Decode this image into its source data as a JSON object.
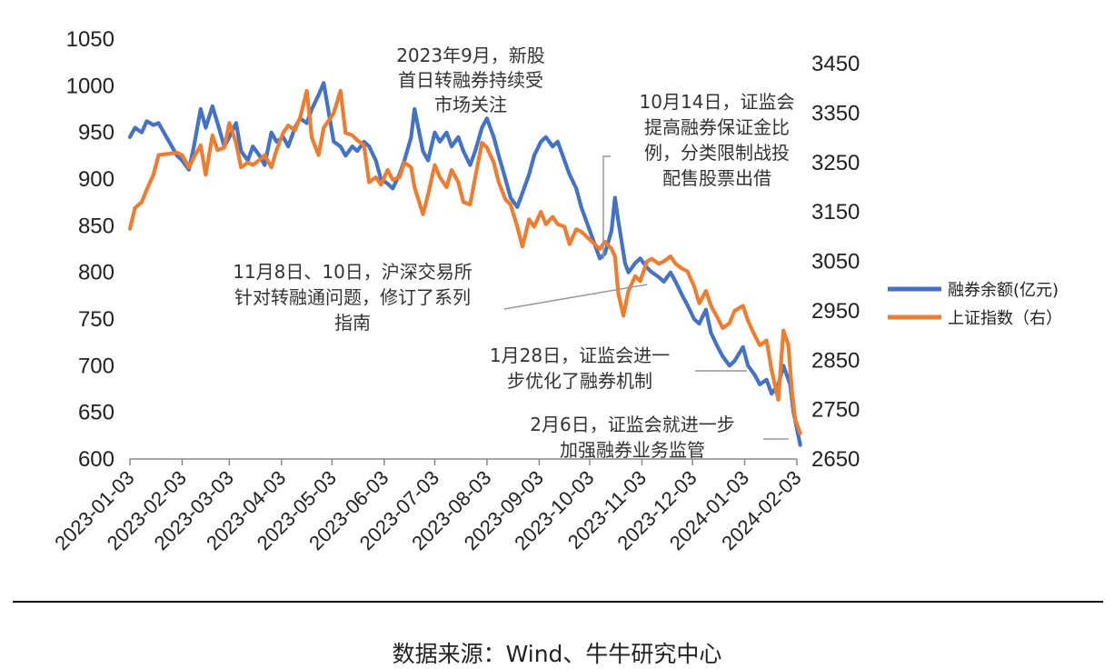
{
  "chart_data": {
    "type": "line",
    "title": "",
    "left_axis": {
      "min": 600,
      "max": 1050,
      "ticks": [
        "1050",
        "1000",
        "950",
        "900",
        "850",
        "800",
        "750",
        "700",
        "650",
        "600"
      ]
    },
    "right_axis": {
      "min": 2650,
      "max": 3450,
      "ticks": [
        "3450",
        "3350",
        "3250",
        "3150",
        "3050",
        "2950",
        "2850",
        "2750",
        "2650"
      ]
    },
    "x_ticks": [
      "2023-01-03",
      "2023-02-03",
      "2023-03-03",
      "2023-04-03",
      "2023-05-03",
      "2023-06-03",
      "2023-07-03",
      "2023-08-03",
      "2023-09-03",
      "2023-10-03",
      "2023-11-03",
      "2023-12-03",
      "2024-01-03",
      "2024-02-03"
    ],
    "grid": false,
    "legend": "right",
    "series": [
      {
        "name": "融券余额(亿元)",
        "axis": "left",
        "color": "#4472C4",
        "points": [
          [
            "2023-01-03",
            945
          ],
          [
            "2023-01-06",
            955
          ],
          [
            "2023-01-10",
            950
          ],
          [
            "2023-01-13",
            962
          ],
          [
            "2023-01-17",
            958
          ],
          [
            "2023-01-20",
            960
          ],
          [
            "2023-01-31",
            925
          ],
          [
            "2023-02-03",
            920
          ],
          [
            "2023-02-07",
            910
          ],
          [
            "2023-02-10",
            935
          ],
          [
            "2023-02-14",
            975
          ],
          [
            "2023-02-17",
            955
          ],
          [
            "2023-02-21",
            978
          ],
          [
            "2023-02-24",
            960
          ],
          [
            "2023-02-28",
            935
          ],
          [
            "2023-03-03",
            945
          ],
          [
            "2023-03-07",
            960
          ],
          [
            "2023-03-10",
            930
          ],
          [
            "2023-03-14",
            920
          ],
          [
            "2023-03-17",
            935
          ],
          [
            "2023-03-21",
            925
          ],
          [
            "2023-03-24",
            915
          ],
          [
            "2023-03-28",
            950
          ],
          [
            "2023-03-31",
            940
          ],
          [
            "2023-04-04",
            945
          ],
          [
            "2023-04-07",
            935
          ],
          [
            "2023-04-11",
            955
          ],
          [
            "2023-04-14",
            965
          ],
          [
            "2023-04-18",
            960
          ],
          [
            "2023-04-21",
            975
          ],
          [
            "2023-04-25",
            990
          ],
          [
            "2023-04-28",
            1003
          ],
          [
            "2023-05-04",
            940
          ],
          [
            "2023-05-08",
            935
          ],
          [
            "2023-05-11",
            925
          ],
          [
            "2023-05-15",
            935
          ],
          [
            "2023-05-18",
            930
          ],
          [
            "2023-05-22",
            940
          ],
          [
            "2023-05-25",
            935
          ],
          [
            "2023-05-29",
            920
          ],
          [
            "2023-06-01",
            900
          ],
          [
            "2023-06-05",
            895
          ],
          [
            "2023-06-08",
            890
          ],
          [
            "2023-06-12",
            905
          ],
          [
            "2023-06-15",
            920
          ],
          [
            "2023-06-19",
            945
          ],
          [
            "2023-06-21",
            975
          ],
          [
            "2023-06-26",
            930
          ],
          [
            "2023-06-29",
            920
          ],
          [
            "2023-07-03",
            950
          ],
          [
            "2023-07-06",
            940
          ],
          [
            "2023-07-10",
            950
          ],
          [
            "2023-07-13",
            935
          ],
          [
            "2023-07-17",
            945
          ],
          [
            "2023-07-20",
            930
          ],
          [
            "2023-07-24",
            915
          ],
          [
            "2023-07-27",
            930
          ],
          [
            "2023-07-31",
            955
          ],
          [
            "2023-08-03",
            965
          ],
          [
            "2023-08-07",
            945
          ],
          [
            "2023-08-10",
            925
          ],
          [
            "2023-08-14",
            900
          ],
          [
            "2023-08-17",
            880
          ],
          [
            "2023-08-21",
            870
          ],
          [
            "2023-08-24",
            885
          ],
          [
            "2023-08-28",
            905
          ],
          [
            "2023-08-31",
            925
          ],
          [
            "2023-09-04",
            940
          ],
          [
            "2023-09-07",
            945
          ],
          [
            "2023-09-11",
            935
          ],
          [
            "2023-09-14",
            940
          ],
          [
            "2023-09-18",
            920
          ],
          [
            "2023-09-21",
            905
          ],
          [
            "2023-09-25",
            890
          ],
          [
            "2023-09-28",
            870
          ],
          [
            "2023-10-09",
            815
          ],
          [
            "2023-10-12",
            820
          ],
          [
            "2023-10-16",
            845
          ],
          [
            "2023-10-18",
            880
          ],
          [
            "2023-10-20",
            855
          ],
          [
            "2023-10-24",
            810
          ],
          [
            "2023-10-26",
            800
          ],
          [
            "2023-10-30",
            810
          ],
          [
            "2023-11-02",
            815
          ],
          [
            "2023-11-06",
            805
          ],
          [
            "2023-11-09",
            800
          ],
          [
            "2023-11-13",
            795
          ],
          [
            "2023-11-16",
            790
          ],
          [
            "2023-11-20",
            800
          ],
          [
            "2023-11-23",
            790
          ],
          [
            "2023-11-27",
            775
          ],
          [
            "2023-11-30",
            765
          ],
          [
            "2023-12-04",
            750
          ],
          [
            "2023-12-07",
            745
          ],
          [
            "2023-12-11",
            760
          ],
          [
            "2023-12-14",
            735
          ],
          [
            "2023-12-18",
            720
          ],
          [
            "2023-12-21",
            710
          ],
          [
            "2023-12-25",
            700
          ],
          [
            "2023-12-28",
            705
          ],
          [
            "2024-01-02",
            720
          ],
          [
            "2024-01-05",
            700
          ],
          [
            "2024-01-09",
            690
          ],
          [
            "2024-01-12",
            680
          ],
          [
            "2024-01-16",
            685
          ],
          [
            "2024-01-19",
            670
          ],
          [
            "2024-01-23",
            680
          ],
          [
            "2024-01-26",
            700
          ],
          [
            "2024-01-30",
            680
          ],
          [
            "2024-02-01",
            650
          ],
          [
            "2024-02-05",
            615
          ]
        ]
      },
      {
        "name": "上证指数（右）",
        "axis": "right",
        "color": "#ED7D31",
        "points": [
          [
            "2023-01-03",
            3116
          ],
          [
            "2023-01-06",
            3158
          ],
          [
            "2023-01-10",
            3170
          ],
          [
            "2023-01-13",
            3195
          ],
          [
            "2023-01-17",
            3225
          ],
          [
            "2023-01-20",
            3265
          ],
          [
            "2023-01-31",
            3270
          ],
          [
            "2023-02-03",
            3265
          ],
          [
            "2023-02-07",
            3240
          ],
          [
            "2023-02-10",
            3260
          ],
          [
            "2023-02-14",
            3285
          ],
          [
            "2023-02-17",
            3225
          ],
          [
            "2023-02-21",
            3305
          ],
          [
            "2023-02-24",
            3275
          ],
          [
            "2023-02-28",
            3280
          ],
          [
            "2023-03-03",
            3330
          ],
          [
            "2023-03-07",
            3290
          ],
          [
            "2023-03-10",
            3240
          ],
          [
            "2023-03-14",
            3250
          ],
          [
            "2023-03-17",
            3245
          ],
          [
            "2023-03-21",
            3255
          ],
          [
            "2023-03-24",
            3265
          ],
          [
            "2023-03-28",
            3240
          ],
          [
            "2023-03-31",
            3275
          ],
          [
            "2023-04-04",
            3310
          ],
          [
            "2023-04-07",
            3325
          ],
          [
            "2023-04-11",
            3315
          ],
          [
            "2023-04-14",
            3340
          ],
          [
            "2023-04-18",
            3395
          ],
          [
            "2023-04-21",
            3300
          ],
          [
            "2023-04-25",
            3265
          ],
          [
            "2023-04-28",
            3320
          ],
          [
            "2023-05-04",
            3350
          ],
          [
            "2023-05-08",
            3395
          ],
          [
            "2023-05-11",
            3310
          ],
          [
            "2023-05-15",
            3305
          ],
          [
            "2023-05-18",
            3295
          ],
          [
            "2023-05-22",
            3285
          ],
          [
            "2023-05-25",
            3210
          ],
          [
            "2023-05-29",
            3220
          ],
          [
            "2023-06-01",
            3205
          ],
          [
            "2023-06-05",
            3235
          ],
          [
            "2023-06-08",
            3215
          ],
          [
            "2023-06-12",
            3220
          ],
          [
            "2023-06-15",
            3250
          ],
          [
            "2023-06-19",
            3240
          ],
          [
            "2023-06-21",
            3200
          ],
          [
            "2023-06-26",
            3145
          ],
          [
            "2023-06-29",
            3185
          ],
          [
            "2023-07-03",
            3245
          ],
          [
            "2023-07-06",
            3220
          ],
          [
            "2023-07-10",
            3200
          ],
          [
            "2023-07-13",
            3235
          ],
          [
            "2023-07-17",
            3210
          ],
          [
            "2023-07-20",
            3170
          ],
          [
            "2023-07-24",
            3165
          ],
          [
            "2023-07-27",
            3220
          ],
          [
            "2023-07-31",
            3290
          ],
          [
            "2023-08-03",
            3280
          ],
          [
            "2023-08-07",
            3250
          ],
          [
            "2023-08-10",
            3210
          ],
          [
            "2023-08-14",
            3175
          ],
          [
            "2023-08-17",
            3165
          ],
          [
            "2023-08-21",
            3120
          ],
          [
            "2023-08-24",
            3080
          ],
          [
            "2023-08-28",
            3135
          ],
          [
            "2023-08-31",
            3120
          ],
          [
            "2023-09-04",
            3150
          ],
          [
            "2023-09-07",
            3125
          ],
          [
            "2023-09-11",
            3140
          ],
          [
            "2023-09-14",
            3125
          ],
          [
            "2023-09-18",
            3120
          ],
          [
            "2023-09-21",
            3085
          ],
          [
            "2023-09-25",
            3115
          ],
          [
            "2023-09-28",
            3110
          ],
          [
            "2023-10-09",
            3075
          ],
          [
            "2023-10-12",
            3090
          ],
          [
            "2023-10-16",
            3075
          ],
          [
            "2023-10-18",
            3060
          ],
          [
            "2023-10-20",
            2985
          ],
          [
            "2023-10-23",
            2940
          ],
          [
            "2023-10-26",
            2990
          ],
          [
            "2023-10-30",
            3020
          ],
          [
            "2023-11-02",
            3010
          ],
          [
            "2023-11-06",
            3050
          ],
          [
            "2023-11-09",
            3055
          ],
          [
            "2023-11-13",
            3045
          ],
          [
            "2023-11-16",
            3050
          ],
          [
            "2023-11-20",
            3060
          ],
          [
            "2023-11-23",
            3045
          ],
          [
            "2023-11-27",
            3035
          ],
          [
            "2023-11-30",
            3030
          ],
          [
            "2023-12-04",
            3000
          ],
          [
            "2023-12-07",
            2965
          ],
          [
            "2023-12-11",
            2990
          ],
          [
            "2023-12-14",
            2960
          ],
          [
            "2023-12-18",
            2935
          ],
          [
            "2023-12-21",
            2915
          ],
          [
            "2023-12-25",
            2925
          ],
          [
            "2023-12-28",
            2950
          ],
          [
            "2024-01-02",
            2960
          ],
          [
            "2024-01-05",
            2930
          ],
          [
            "2024-01-09",
            2900
          ],
          [
            "2024-01-12",
            2880
          ],
          [
            "2024-01-16",
            2890
          ],
          [
            "2024-01-19",
            2830
          ],
          [
            "2024-01-23",
            2770
          ],
          [
            "2024-01-26",
            2910
          ],
          [
            "2024-01-29",
            2880
          ],
          [
            "2024-01-31",
            2790
          ],
          [
            "2024-02-02",
            2730
          ],
          [
            "2024-02-05",
            2702
          ]
        ]
      }
    ],
    "annotations": [
      {
        "lines": [
          "2023年9月，新股",
          "首日转融券持续受",
          "市场关注"
        ]
      },
      {
        "lines": [
          "10月14日，证监会",
          "提高融券保证金比",
          "例，分类限制战投",
          "配售股票出借"
        ]
      },
      {
        "lines": [
          "11月8日、10日，沪深交易所",
          "针对转融通问题，修订了系列",
          "指南"
        ]
      },
      {
        "lines": [
          "1月28日，证监会进一",
          "步优化了融券机制"
        ]
      },
      {
        "lines": [
          "2月6日，证监会就进一步",
          "加强融券业务监管"
        ]
      }
    ]
  },
  "source": "数据来源：Wind、牛牛研究中心"
}
